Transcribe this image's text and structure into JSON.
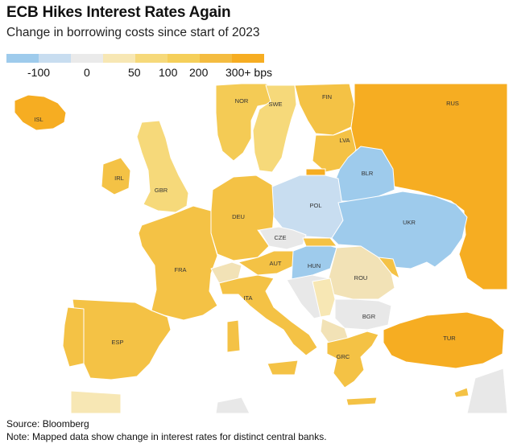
{
  "title": "ECB Hikes Interest Rates Again",
  "subtitle": "Change in borrowing costs since start of 2023",
  "legend": {
    "colors": [
      "#9ecbec",
      "#c8ddf0",
      "#eaeaea",
      "#f7e7b4",
      "#f6d97a",
      "#f5cf5a",
      "#f4bc40",
      "#f6ad22"
    ],
    "ticks": [
      "-100",
      "0",
      "50",
      "100",
      "200",
      "300+ bps"
    ]
  },
  "colors": {
    "ocean": "#ffffff",
    "neg_strong": "#9ecbec",
    "neg_light": "#c8ddf0",
    "zero": "#e8e8e8",
    "low": "#f2e2b6",
    "mid_low": "#f6d97a",
    "mid": "#f4cb55",
    "eur": "#f4c245",
    "high": "#f6ad22"
  },
  "countries": [
    {
      "code": "ISL",
      "tier": "high"
    },
    {
      "code": "NOR",
      "tier": "mid"
    },
    {
      "code": "SWE",
      "tier": "mid_low"
    },
    {
      "code": "FIN",
      "tier": "eur"
    },
    {
      "code": "RUS",
      "tier": "high"
    },
    {
      "code": "LVA",
      "tier": "eur"
    },
    {
      "code": "IRL",
      "tier": "eur"
    },
    {
      "code": "GBR",
      "tier": "mid_low"
    },
    {
      "code": "BLR",
      "tier": "neg_strong"
    },
    {
      "code": "POL",
      "tier": "neg_light"
    },
    {
      "code": "DEU",
      "tier": "eur"
    },
    {
      "code": "UKR",
      "tier": "neg_strong"
    },
    {
      "code": "CZE",
      "tier": "zero"
    },
    {
      "code": "FRA",
      "tier": "eur"
    },
    {
      "code": "AUT",
      "tier": "eur"
    },
    {
      "code": "HUN",
      "tier": "neg_strong"
    },
    {
      "code": "ROU",
      "tier": "low"
    },
    {
      "code": "ITA",
      "tier": "eur"
    },
    {
      "code": "BGR",
      "tier": "zero"
    },
    {
      "code": "ESP",
      "tier": "eur"
    },
    {
      "code": "TUR",
      "tier": "high"
    },
    {
      "code": "GRC",
      "tier": "eur"
    }
  ],
  "footer": {
    "source": "Source: Bloomberg",
    "note": "Note: Mapped data show change in interest rates for distinct central banks."
  }
}
